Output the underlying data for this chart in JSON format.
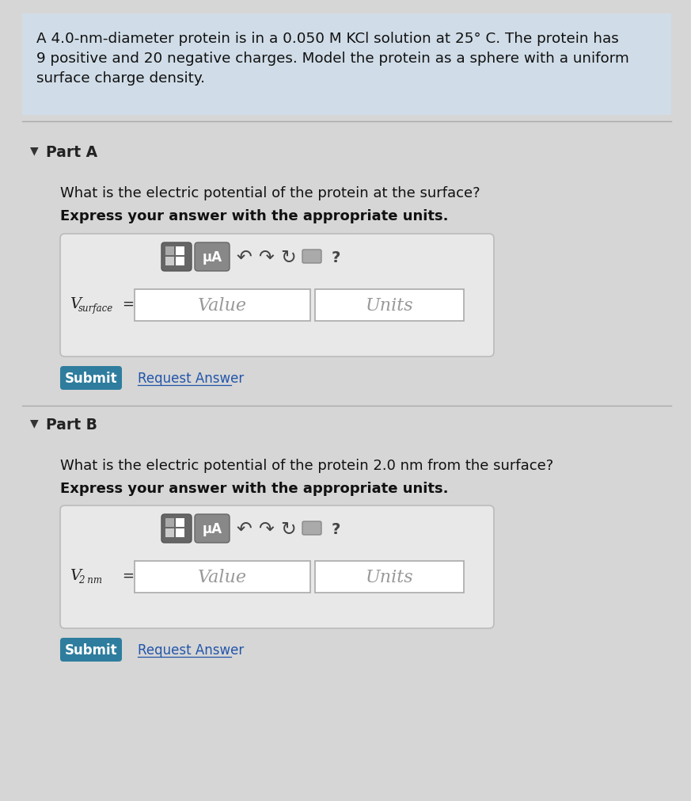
{
  "bg_color": "#d6d6d6",
  "header_bg": "#d0dde8",
  "header_text_line1": "A 4.0-nm-diameter protein is in a 0.050 M KCl solution at 25° C. The protein has",
  "header_text_line2": "9 positive and 20 negative charges. Model the protein as a sphere with a uniform",
  "header_text_line3": "surface charge density.",
  "part_a_label": "Part A",
  "part_a_question": "What is the electric potential of the protein at the surface?",
  "part_a_bold": "Express your answer with the appropriate units.",
  "part_a_value_placeholder": "Value",
  "part_a_units_placeholder": "Units",
  "part_a_eq_main": "V",
  "part_a_eq_sub": "surface",
  "part_b_label": "Part B",
  "part_b_question": "What is the electric potential of the protein 2.0 nm from the surface?",
  "part_b_bold": "Express your answer with the appropriate units.",
  "part_b_value_placeholder": "Value",
  "part_b_units_placeholder": "Units",
  "part_b_eq_main": "V",
  "part_b_eq_sub": "2 nm",
  "submit_bg": "#2e7d9e",
  "submit_text_color": "#ffffff",
  "submit_label": "Submit",
  "request_answer_label": "Request Answer",
  "mu_a_label": "μA",
  "panel_bg": "#e8e8e8",
  "input_bg": "#ffffff",
  "arrow_color": "#444444",
  "question_mark": "?"
}
